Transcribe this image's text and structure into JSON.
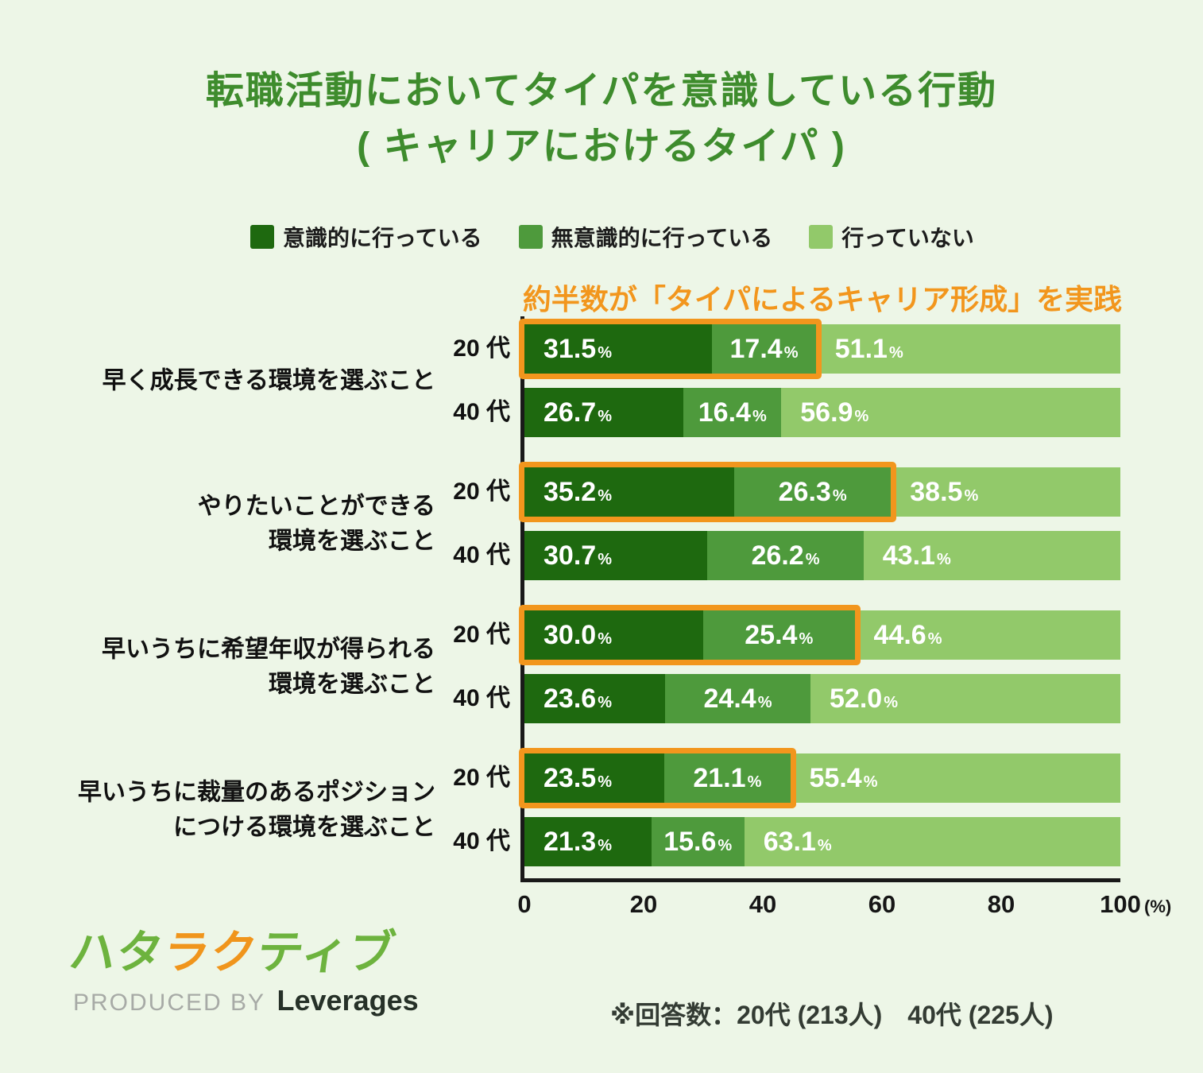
{
  "title": {
    "line1": "転職活動においてタイパを意識している行動",
    "line2": "( キャリアにおけるタイパ )",
    "color": "#3e8c2d"
  },
  "legend": [
    {
      "label": "意識的に行っている",
      "color": "#1e690f"
    },
    {
      "label": "無意識的に行っている",
      "color": "#4e9a3c"
    },
    {
      "label": "行っていない",
      "color": "#92c96a"
    }
  ],
  "highlight_note": {
    "text": "約半数が「タイパによるキャリア形成」を実践",
    "color": "#f2961d"
  },
  "chart_data": {
    "type": "bar",
    "orientation": "horizontal",
    "stacked": true,
    "unit": "%",
    "xlim": [
      0,
      100
    ],
    "x_ticks": [
      0,
      20,
      40,
      60,
      80,
      100
    ],
    "x_suffix": "(%)",
    "series": [
      "意識的に行っている",
      "無意識的に行っている",
      "行っていない"
    ],
    "colors": [
      "#1e690f",
      "#4e9a3c",
      "#92c96a"
    ],
    "highlight_color": "#f2961d",
    "groups": [
      {
        "category_lines": [
          "早く成長できる環境を選ぶこと"
        ],
        "rows": [
          {
            "label": "20 代",
            "values": [
              31.5,
              17.4,
              51.1
            ],
            "labels": [
              "31.5",
              "17.4",
              "51.1"
            ],
            "highlighted": true
          },
          {
            "label": "40 代",
            "values": [
              26.7,
              16.4,
              56.9
            ],
            "labels": [
              "26.7",
              "16.4",
              "56.9"
            ],
            "highlighted": false
          }
        ]
      },
      {
        "category_lines": [
          "やりたいことができる",
          "環境を選ぶこと"
        ],
        "rows": [
          {
            "label": "20 代",
            "values": [
              35.2,
              26.3,
              38.5
            ],
            "labels": [
              "35.2",
              "26.3",
              "38.5"
            ],
            "highlighted": true
          },
          {
            "label": "40 代",
            "values": [
              30.7,
              26.2,
              43.1
            ],
            "labels": [
              "30.7",
              "26.2",
              "43.1"
            ],
            "highlighted": false
          }
        ]
      },
      {
        "category_lines": [
          "早いうちに希望年収が得られる",
          "環境を選ぶこと"
        ],
        "rows": [
          {
            "label": "20 代",
            "values": [
              30.0,
              25.4,
              44.6
            ],
            "labels": [
              "30.0",
              "25.4",
              "44.6"
            ],
            "highlighted": true
          },
          {
            "label": "40 代",
            "values": [
              23.6,
              24.4,
              52.0
            ],
            "labels": [
              "23.6",
              "24.4",
              "52.0"
            ],
            "highlighted": false
          }
        ]
      },
      {
        "category_lines": [
          "早いうちに裁量のあるポジション",
          "につける環境を選ぶこと"
        ],
        "rows": [
          {
            "label": "20 代",
            "values": [
              23.5,
              21.1,
              55.4
            ],
            "labels": [
              "23.5",
              "21.1",
              "55.4"
            ],
            "highlighted": true
          },
          {
            "label": "40 代",
            "values": [
              21.3,
              15.6,
              63.1
            ],
            "labels": [
              "21.3",
              "15.6",
              "63.1"
            ],
            "highlighted": false
          }
        ]
      }
    ]
  },
  "logo": {
    "parts": [
      {
        "text": "ハタ",
        "color": "#6db33e"
      },
      {
        "text": "ラク",
        "color": "#f0951c"
      },
      {
        "text": "ティブ",
        "color": "#6db33e"
      }
    ],
    "produced_by": "PRODUCED BY",
    "company": "Leverages"
  },
  "footer": {
    "note": "※回答数：20代 (213人)　40代 (225人)"
  },
  "background_color": "#edf6e7"
}
